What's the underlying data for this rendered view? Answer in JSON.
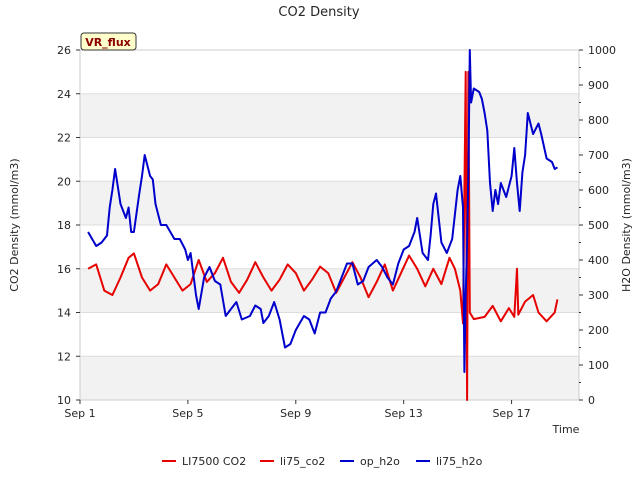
{
  "chart_data": {
    "type": "line",
    "title": "CO2 Density",
    "xlabel": "Time",
    "ylabel_left": "CO2 Density (mmol/m3)",
    "ylabel_right": "H2O Density (mmol/m3)",
    "badge": "VR_flux",
    "x_units": "days since Sep 1",
    "xlim": [
      0,
      18.5
    ],
    "ylim_left": [
      10,
      26
    ],
    "ylim_right": [
      0,
      1000
    ],
    "x_ticks": [
      {
        "value": 0,
        "label": "Sep 1"
      },
      {
        "value": 4,
        "label": "Sep 5"
      },
      {
        "value": 8,
        "label": "Sep 9"
      },
      {
        "value": 12,
        "label": "Sep 13"
      },
      {
        "value": 16,
        "label": "Sep 17"
      }
    ],
    "y_ticks_left": [
      10,
      12,
      14,
      16,
      18,
      20,
      22,
      24,
      26
    ],
    "y_ticks_right": [
      0,
      100,
      200,
      300,
      400,
      500,
      600,
      700,
      800,
      900,
      1000
    ],
    "legend": [
      "LI7500 CO2",
      "li75_co2",
      "op_h2o",
      "li75_h2o"
    ],
    "series": [
      {
        "name": "li75_co2",
        "axis": "left",
        "color": "#e60000",
        "points": [
          [
            0.3,
            16.0
          ],
          [
            0.6,
            16.2
          ],
          [
            0.9,
            15.0
          ],
          [
            1.2,
            14.8
          ],
          [
            1.5,
            15.6
          ],
          [
            1.8,
            16.5
          ],
          [
            2.0,
            16.7
          ],
          [
            2.3,
            15.6
          ],
          [
            2.6,
            15.0
          ],
          [
            2.9,
            15.3
          ],
          [
            3.2,
            16.2
          ],
          [
            3.5,
            15.6
          ],
          [
            3.8,
            15.0
          ],
          [
            4.1,
            15.3
          ],
          [
            4.4,
            16.4
          ],
          [
            4.7,
            15.4
          ],
          [
            5.0,
            15.8
          ],
          [
            5.3,
            16.5
          ],
          [
            5.6,
            15.4
          ],
          [
            5.9,
            14.9
          ],
          [
            6.2,
            15.5
          ],
          [
            6.5,
            16.3
          ],
          [
            6.8,
            15.6
          ],
          [
            7.1,
            15.0
          ],
          [
            7.4,
            15.5
          ],
          [
            7.7,
            16.2
          ],
          [
            8.0,
            15.8
          ],
          [
            8.3,
            15.0
          ],
          [
            8.6,
            15.5
          ],
          [
            8.9,
            16.1
          ],
          [
            9.2,
            15.8
          ],
          [
            9.5,
            14.9
          ],
          [
            9.8,
            15.6
          ],
          [
            10.1,
            16.3
          ],
          [
            10.4,
            15.6
          ],
          [
            10.7,
            14.7
          ],
          [
            11.0,
            15.4
          ],
          [
            11.3,
            16.2
          ],
          [
            11.6,
            15.0
          ],
          [
            11.9,
            15.8
          ],
          [
            12.2,
            16.6
          ],
          [
            12.5,
            16.0
          ],
          [
            12.8,
            15.2
          ],
          [
            13.1,
            16.0
          ],
          [
            13.4,
            15.3
          ],
          [
            13.7,
            16.5
          ],
          [
            13.9,
            16.0
          ],
          [
            14.1,
            15.0
          ],
          [
            14.2,
            13.5
          ],
          [
            14.3,
            25.0
          ],
          [
            14.35,
            10.0
          ],
          [
            14.4,
            25.0
          ],
          [
            14.45,
            14.0
          ],
          [
            14.6,
            13.7
          ],
          [
            15.0,
            13.8
          ],
          [
            15.3,
            14.3
          ],
          [
            15.6,
            13.6
          ],
          [
            15.9,
            14.2
          ],
          [
            16.1,
            13.8
          ],
          [
            16.2,
            16.0
          ],
          [
            16.25,
            13.9
          ],
          [
            16.5,
            14.5
          ],
          [
            16.8,
            14.8
          ],
          [
            17.0,
            14.0
          ],
          [
            17.3,
            13.6
          ],
          [
            17.6,
            14.0
          ],
          [
            17.7,
            14.6
          ]
        ]
      },
      {
        "name": "li75_h2o",
        "axis": "right",
        "color": "#0000cc",
        "points": [
          [
            0.3,
            480
          ],
          [
            0.6,
            440
          ],
          [
            0.8,
            450
          ],
          [
            1.0,
            470
          ],
          [
            1.1,
            550
          ],
          [
            1.2,
            600
          ],
          [
            1.3,
            660
          ],
          [
            1.5,
            560
          ],
          [
            1.7,
            520
          ],
          [
            1.8,
            550
          ],
          [
            1.9,
            480
          ],
          [
            2.0,
            480
          ],
          [
            2.2,
            590
          ],
          [
            2.3,
            640
          ],
          [
            2.4,
            700
          ],
          [
            2.6,
            640
          ],
          [
            2.7,
            630
          ],
          [
            2.8,
            560
          ],
          [
            3.0,
            500
          ],
          [
            3.2,
            500
          ],
          [
            3.5,
            460
          ],
          [
            3.7,
            460
          ],
          [
            3.9,
            430
          ],
          [
            4.0,
            400
          ],
          [
            4.1,
            420
          ],
          [
            4.2,
            360
          ],
          [
            4.3,
            300
          ],
          [
            4.4,
            260
          ],
          [
            4.6,
            350
          ],
          [
            4.8,
            380
          ],
          [
            5.0,
            340
          ],
          [
            5.2,
            330
          ],
          [
            5.4,
            240
          ],
          [
            5.6,
            260
          ],
          [
            5.8,
            280
          ],
          [
            6.0,
            230
          ],
          [
            6.3,
            240
          ],
          [
            6.5,
            270
          ],
          [
            6.7,
            260
          ],
          [
            6.8,
            220
          ],
          [
            7.0,
            240
          ],
          [
            7.2,
            280
          ],
          [
            7.4,
            230
          ],
          [
            7.6,
            150
          ],
          [
            7.8,
            160
          ],
          [
            8.0,
            200
          ],
          [
            8.3,
            240
          ],
          [
            8.5,
            230
          ],
          [
            8.7,
            190
          ],
          [
            8.9,
            250
          ],
          [
            9.1,
            250
          ],
          [
            9.3,
            290
          ],
          [
            9.5,
            310
          ],
          [
            9.7,
            350
          ],
          [
            9.9,
            390
          ],
          [
            10.1,
            390
          ],
          [
            10.3,
            330
          ],
          [
            10.5,
            340
          ],
          [
            10.7,
            380
          ],
          [
            11.0,
            400
          ],
          [
            11.2,
            380
          ],
          [
            11.4,
            350
          ],
          [
            11.6,
            330
          ],
          [
            11.8,
            390
          ],
          [
            12.0,
            430
          ],
          [
            12.2,
            440
          ],
          [
            12.4,
            480
          ],
          [
            12.5,
            520
          ],
          [
            12.7,
            420
          ],
          [
            12.9,
            400
          ],
          [
            13.0,
            470
          ],
          [
            13.1,
            560
          ],
          [
            13.2,
            590
          ],
          [
            13.4,
            450
          ],
          [
            13.6,
            420
          ],
          [
            13.8,
            460
          ],
          [
            14.0,
            600
          ],
          [
            14.1,
            640
          ],
          [
            14.2,
            550
          ],
          [
            14.25,
            80
          ],
          [
            14.3,
            300
          ],
          [
            14.35,
            450
          ],
          [
            14.4,
            650
          ],
          [
            14.45,
            1000
          ],
          [
            14.5,
            850
          ],
          [
            14.6,
            890
          ],
          [
            14.8,
            880
          ],
          [
            14.9,
            860
          ],
          [
            15.0,
            820
          ],
          [
            15.1,
            770
          ],
          [
            15.2,
            620
          ],
          [
            15.3,
            540
          ],
          [
            15.4,
            600
          ],
          [
            15.5,
            560
          ],
          [
            15.6,
            620
          ],
          [
            15.8,
            580
          ],
          [
            16.0,
            640
          ],
          [
            16.1,
            720
          ],
          [
            16.2,
            620
          ],
          [
            16.3,
            540
          ],
          [
            16.4,
            650
          ],
          [
            16.5,
            700
          ],
          [
            16.6,
            820
          ],
          [
            16.8,
            760
          ],
          [
            17.0,
            790
          ],
          [
            17.1,
            760
          ],
          [
            17.3,
            690
          ],
          [
            17.5,
            680
          ],
          [
            17.6,
            660
          ],
          [
            17.7,
            665
          ]
        ]
      }
    ]
  }
}
